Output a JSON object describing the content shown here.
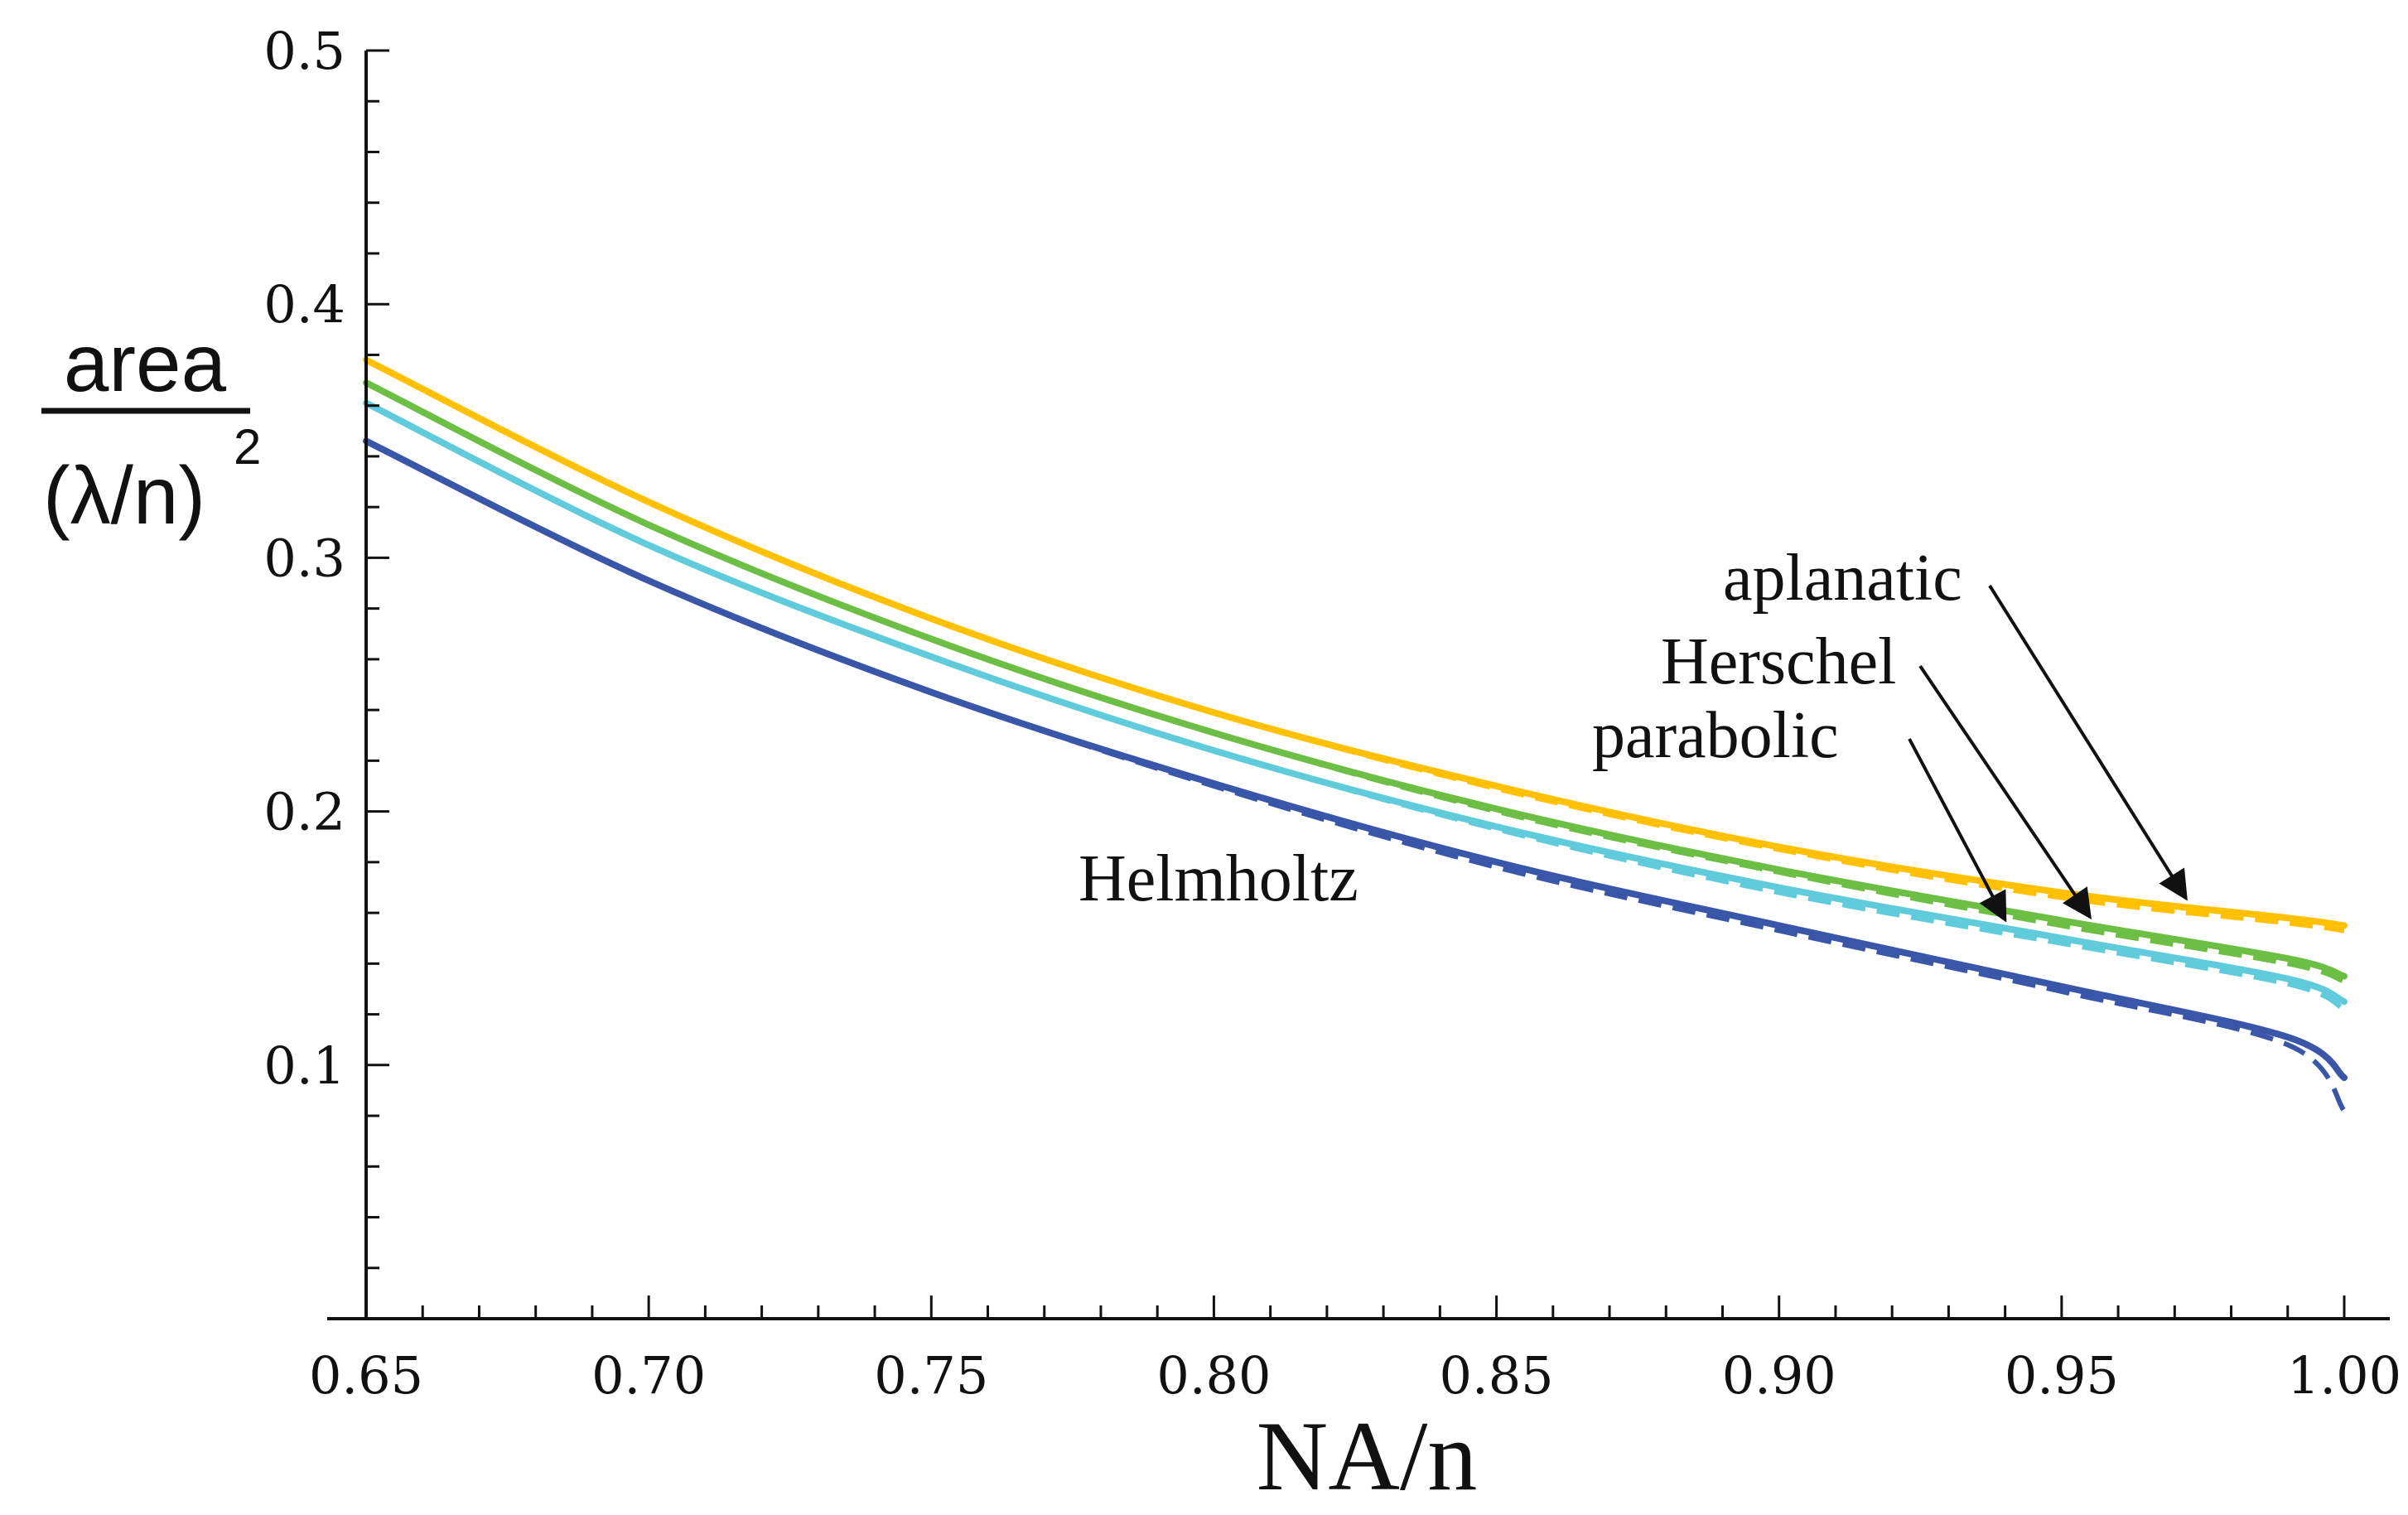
{
  "chart_data": {
    "type": "line",
    "title": "",
    "xlabel": "NA/n",
    "ylabel_numerator": "area",
    "ylabel_denominator": "(λ/n)",
    "ylabel_exponent": "2",
    "xlim": [
      0.65,
      1.0
    ],
    "ylim": [
      0.0,
      0.5
    ],
    "x_ticks": [
      0.65,
      0.7,
      0.75,
      0.8,
      0.85,
      0.9,
      0.95,
      1.0
    ],
    "x_tick_labels": [
      "0.65",
      "0.70",
      "0.75",
      "0.80",
      "0.85",
      "0.90",
      "0.95",
      "1.00"
    ],
    "y_ticks": [
      0.1,
      0.2,
      0.3,
      0.4,
      0.5
    ],
    "y_tick_labels": [
      "0.1",
      "0.2",
      "0.3",
      "0.4",
      "0.5"
    ],
    "grid": false,
    "x": [
      0.65,
      0.7,
      0.75,
      0.8,
      0.85,
      0.9,
      0.95,
      0.99,
      1.0
    ],
    "series": [
      {
        "name": "aplanatic",
        "color": "#FFC000",
        "values": [
          0.378,
          0.322,
          0.276,
          0.239,
          0.21,
          0.186,
          0.168,
          0.158,
          0.155
        ],
        "dashed_values": [
          0.378,
          0.322,
          0.276,
          0.239,
          0.209,
          0.185,
          0.166,
          0.156,
          0.153
        ]
      },
      {
        "name": "Herschel",
        "color": "#6DBE45",
        "values": [
          0.369,
          0.313,
          0.268,
          0.231,
          0.201,
          0.177,
          0.157,
          0.142,
          0.135
        ],
        "dashed_values": [
          0.369,
          0.313,
          0.268,
          0.231,
          0.2,
          0.176,
          0.155,
          0.14,
          0.133
        ]
      },
      {
        "name": "parabolic",
        "color": "#5FCBDB",
        "values": [
          0.361,
          0.305,
          0.261,
          0.224,
          0.194,
          0.17,
          0.15,
          0.134,
          0.125
        ],
        "dashed_values": [
          0.361,
          0.305,
          0.261,
          0.224,
          0.193,
          0.168,
          0.148,
          0.132,
          0.122
        ]
      },
      {
        "name": "Helmholtz",
        "color": "#3A56A8",
        "values": [
          0.346,
          0.291,
          0.247,
          0.211,
          0.18,
          0.155,
          0.131,
          0.111,
          0.095
        ],
        "dashed_values": [
          0.346,
          0.291,
          0.247,
          0.21,
          0.178,
          0.153,
          0.129,
          0.108,
          0.082
        ]
      }
    ],
    "annotations": [
      {
        "text": "aplanatic",
        "series": "aplanatic",
        "arrow_to_x": 0.972
      },
      {
        "text": "Herschel",
        "series": "Herschel",
        "arrow_to_x": 0.955
      },
      {
        "text": "parabolic",
        "series": "parabolic",
        "arrow_to_x": 0.94
      },
      {
        "text": "Helmholtz",
        "series": "Helmholtz"
      }
    ]
  }
}
